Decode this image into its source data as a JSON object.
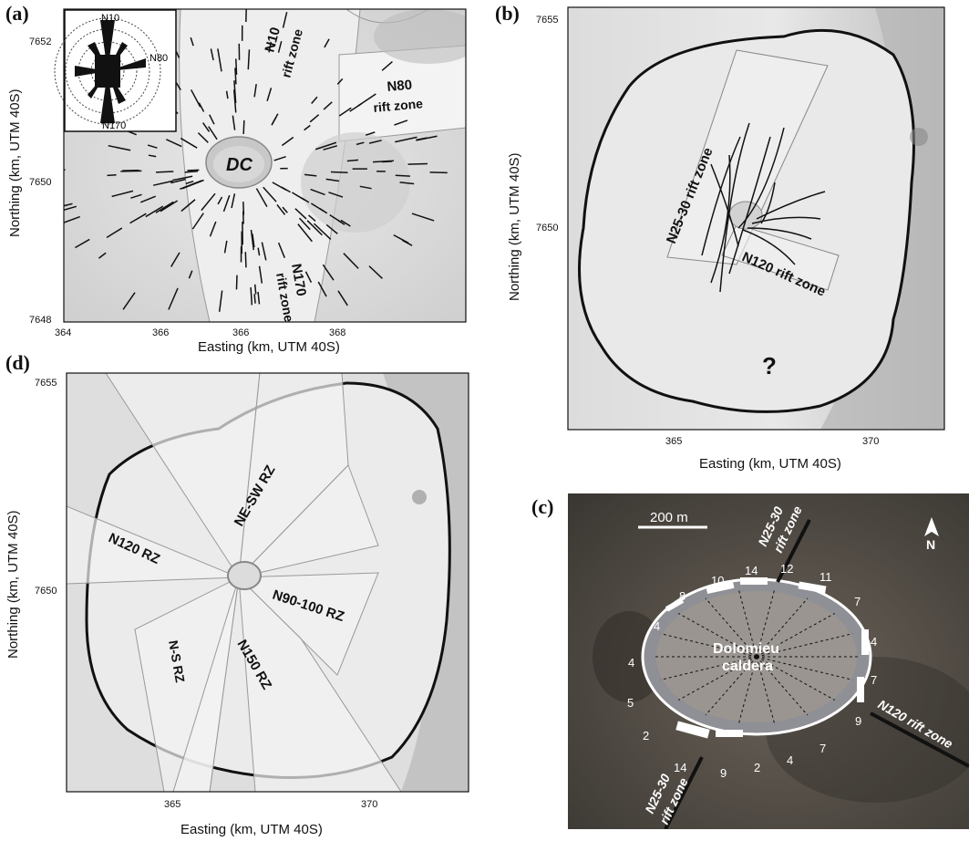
{
  "panel_a": {
    "letter": "(a)",
    "x_title": "Easting (km, UTM 40S)",
    "y_title": "Northing (km, UTM 40S)",
    "x_ticks": [
      "364",
      "366",
      "366",
      "368"
    ],
    "y_ticks": [
      "7652",
      "7650",
      "7648"
    ],
    "labels": {
      "dc": "DC",
      "n10_a": "N10",
      "n10_b": "rift zone",
      "n80_a": "N80",
      "n80_b": "rift zone",
      "n170_a": "N170",
      "n170_b": "rift zone"
    },
    "rose": {
      "n10": "N10",
      "n80": "N80",
      "n170": "N170"
    }
  },
  "panel_b": {
    "letter": "(b)",
    "x_title": "Easting (km, UTM 40S)",
    "y_title": "Northing (km, UTM 40S)",
    "x_ticks": [
      "365",
      "370"
    ],
    "y_ticks": [
      "7655",
      "7650"
    ],
    "labels": {
      "n2530": "N25-30 rift zone",
      "n120": "N120 rift zone",
      "question": "?"
    }
  },
  "panel_c": {
    "letter": "(c)",
    "scale": "200 m",
    "north": "N",
    "caldera_a": "Dolomieu",
    "caldera_b": "caldera",
    "rift_top_a": "N25-30",
    "rift_top_b": "rift zone",
    "rift_bottom_a": "N25-30",
    "rift_bottom_b": "rift zone",
    "rift_right": "N120 rift zone",
    "counts": [
      "14",
      "12",
      "11",
      "7",
      "4",
      "7",
      "9",
      "7",
      "4",
      "2",
      "9",
      "14",
      "2",
      "5",
      "4",
      "4",
      "8",
      "10"
    ]
  },
  "panel_d": {
    "letter": "(d)",
    "x_title": "Easting (km, UTM 40S)",
    "y_title": "Northing (km, UTM 40S)",
    "x_ticks": [
      "365",
      "370"
    ],
    "y_ticks": [
      "7655",
      "7650"
    ],
    "labels": {
      "nesw": "NE-SW RZ",
      "n120": "N120 RZ",
      "n90": "N90-100 RZ",
      "ns": "N-S RZ",
      "n150": "N150 RZ"
    }
  },
  "colors": {
    "hillshade": "#d8d8d8",
    "photo": "#4a4641",
    "zone_fill": "#f4f4f4",
    "caldera_rim": "#111111"
  }
}
